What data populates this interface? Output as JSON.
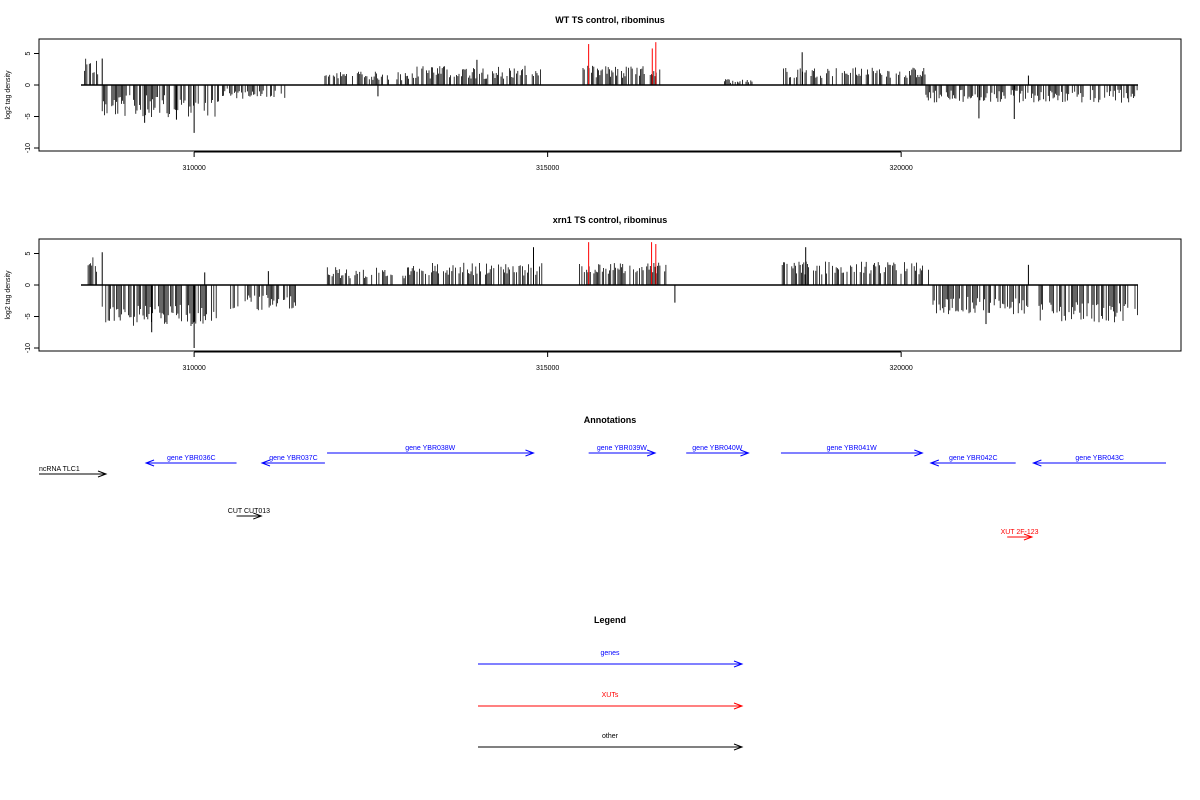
{
  "colors": {
    "gene": "#0000ff",
    "xut": "#ff0000",
    "other": "#000000",
    "highlight": "#ff0000",
    "bar": "#000000"
  },
  "xaxis": {
    "min": 308400,
    "max": 323350,
    "ticks": [
      310000,
      315000,
      320000
    ],
    "tick_labels": [
      "310000",
      "315000",
      "320000"
    ]
  },
  "chart_data": [
    {
      "type": "bar",
      "title": "WT TS control, ribominus",
      "ylabel": "log2 tag density",
      "yticks": [
        5,
        0,
        -5,
        -10
      ],
      "ytick_labels": [
        "5",
        "0",
        "-5",
        "-10"
      ],
      "ylim": [
        -10.3,
        7
      ],
      "segments": [
        {
          "start": 308450,
          "end": 308650,
          "dir": 1,
          "avg": 2.5,
          "var": 2
        },
        {
          "start": 308700,
          "end": 310350,
          "dir": -1,
          "avg": 3,
          "var": 2.5
        },
        {
          "start": 310400,
          "end": 311350,
          "dir": -1,
          "avg": 1.2,
          "var": 1.2
        },
        {
          "start": 311850,
          "end": 313000,
          "dir": 1,
          "avg": 1.3,
          "var": 1
        },
        {
          "start": 313000,
          "end": 314950,
          "dir": 1,
          "avg": 1.8,
          "var": 1.5
        },
        {
          "start": 315500,
          "end": 316600,
          "dir": 1,
          "avg": 1.8,
          "var": 1.5
        },
        {
          "start": 317500,
          "end": 317900,
          "dir": 1,
          "avg": 0.6,
          "var": 0.5
        },
        {
          "start": 318300,
          "end": 320350,
          "dir": 1,
          "avg": 1.8,
          "var": 1.2
        },
        {
          "start": 320350,
          "end": 323350,
          "dir": -1,
          "avg": 1.6,
          "var": 1.5
        }
      ],
      "spikes": [
        {
          "x": 308700,
          "y": 4.2
        },
        {
          "x": 309300,
          "y": -6
        },
        {
          "x": 309750,
          "y": -5.5
        },
        {
          "x": 310000,
          "y": -7.6
        },
        {
          "x": 312600,
          "y": -1.8
        },
        {
          "x": 314000,
          "y": 4
        },
        {
          "x": 318600,
          "y": 5.2
        },
        {
          "x": 321100,
          "y": -5.3
        },
        {
          "x": 321600,
          "y": -5.4
        },
        {
          "x": 321800,
          "y": 1.5
        }
      ],
      "highlights": [
        {
          "x": 315580,
          "y": 6.5
        },
        {
          "x": 316480,
          "y": 5.8
        },
        {
          "x": 316530,
          "y": 6.8
        }
      ]
    },
    {
      "type": "bar",
      "title": "xrn1 TS control, ribominus",
      "ylabel": "log2 tag density",
      "yticks": [
        5,
        0,
        -5,
        -10
      ],
      "ytick_labels": [
        "5",
        "0",
        "-5",
        "-10"
      ],
      "ylim": [
        -10.3,
        7
      ],
      "segments": [
        {
          "start": 308450,
          "end": 308650,
          "dir": 1,
          "avg": 2.8,
          "var": 2
        },
        {
          "start": 308700,
          "end": 310350,
          "dir": -1,
          "avg": 4.5,
          "var": 2.5
        },
        {
          "start": 310500,
          "end": 311450,
          "dir": -1,
          "avg": 2.5,
          "var": 1.8
        },
        {
          "start": 311850,
          "end": 313000,
          "dir": 1,
          "avg": 1.8,
          "var": 1.3
        },
        {
          "start": 313000,
          "end": 314950,
          "dir": 1,
          "avg": 2.3,
          "var": 1.5
        },
        {
          "start": 315450,
          "end": 316700,
          "dir": 1,
          "avg": 2.5,
          "var": 1.3
        },
        {
          "start": 318300,
          "end": 320400,
          "dir": 1,
          "avg": 2.5,
          "var": 1.5
        },
        {
          "start": 320400,
          "end": 321800,
          "dir": -1,
          "avg": 3,
          "var": 2
        },
        {
          "start": 321950,
          "end": 323350,
          "dir": -1,
          "avg": 4,
          "var": 2.3
        }
      ],
      "spikes": [
        {
          "x": 308700,
          "y": 5.2
        },
        {
          "x": 309400,
          "y": -7.5
        },
        {
          "x": 310000,
          "y": -10
        },
        {
          "x": 310150,
          "y": 2
        },
        {
          "x": 311050,
          "y": 2.2
        },
        {
          "x": 314800,
          "y": 6
        },
        {
          "x": 316800,
          "y": -2.8
        },
        {
          "x": 318650,
          "y": 6
        },
        {
          "x": 321200,
          "y": -6.2
        },
        {
          "x": 321800,
          "y": 3.2
        }
      ],
      "highlights": [
        {
          "x": 315580,
          "y": 6.8
        },
        {
          "x": 316470,
          "y": 6.8
        },
        {
          "x": 316530,
          "y": 6.5
        }
      ]
    }
  ],
  "annotations": {
    "title": "Annotations",
    "items": [
      {
        "label": "ncRNA TLC1",
        "kind": "other",
        "start": 308400,
        "end": 309360,
        "row": 2,
        "dir": 1
      },
      {
        "label": "gene YBR036C",
        "kind": "gene",
        "start": 309320,
        "end": 310600,
        "row": 1,
        "dir": -1
      },
      {
        "label": "gene YBR037C",
        "kind": "gene",
        "start": 310960,
        "end": 311850,
        "row": 1,
        "dir": -1
      },
      {
        "label": "gene YBR038W",
        "kind": "gene",
        "start": 311880,
        "end": 314800,
        "row": 0,
        "dir": 1
      },
      {
        "label": "gene YBR039W",
        "kind": "gene",
        "start": 315580,
        "end": 316520,
        "row": 0,
        "dir": 1
      },
      {
        "label": "gene YBR040W",
        "kind": "gene",
        "start": 316960,
        "end": 317840,
        "row": 0,
        "dir": 1
      },
      {
        "label": "gene YBR041W",
        "kind": "gene",
        "start": 318300,
        "end": 320300,
        "row": 0,
        "dir": 1
      },
      {
        "label": "gene YBR042C",
        "kind": "gene",
        "start": 320420,
        "end": 321620,
        "row": 1,
        "dir": -1
      },
      {
        "label": "gene YBR043C",
        "kind": "gene",
        "start": 321870,
        "end": 323350,
        "row": 1,
        "dir": -1
      },
      {
        "label": "CUT CUT013",
        "kind": "other",
        "start": 310600,
        "end": 310950,
        "row": 3,
        "dir": 1
      },
      {
        "label": "XUT 2F-123",
        "kind": "xut",
        "start": 321500,
        "end": 321850,
        "row": 4,
        "dir": 1
      }
    ]
  },
  "legend": {
    "title": "Legend",
    "items": [
      {
        "label": "genes",
        "kind": "gene"
      },
      {
        "label": "XUTs",
        "kind": "xut"
      },
      {
        "label": "other",
        "kind": "other"
      }
    ]
  }
}
